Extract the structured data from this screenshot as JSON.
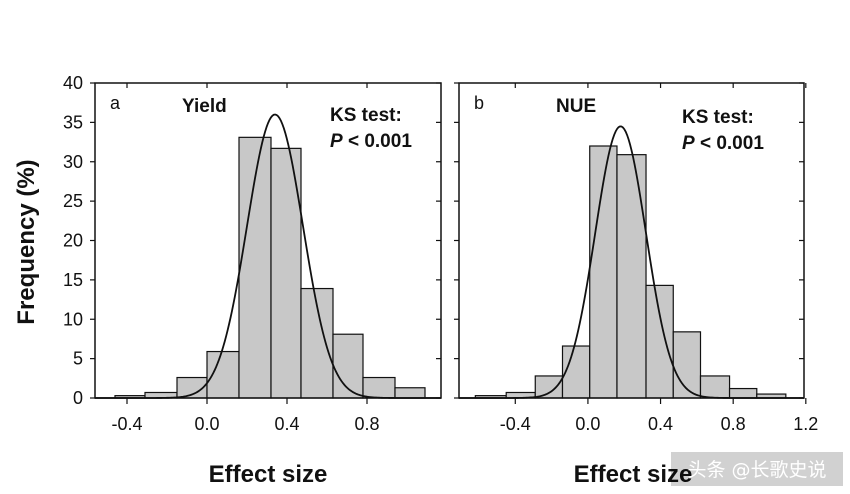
{
  "y_axis_label": "Frequency (%)",
  "watermark": "头条 @长歌史说",
  "chart_data": [
    {
      "type": "histogram",
      "panel_letter": "a",
      "title": "Yield",
      "annotation": {
        "line1": "KS test:",
        "line2_italic": "P",
        "line2_rest": " < 0.001"
      },
      "xlabel": "Effect size",
      "ylabel": "Frequency (%)",
      "xlim": [
        -0.56,
        1.17
      ],
      "ylim": [
        0,
        40
      ],
      "xticks": [
        -0.4,
        0.0,
        0.4,
        0.8
      ],
      "xtick_labels": [
        "-0.4",
        "0.0",
        "0.4",
        "0.8"
      ],
      "yticks": [
        0,
        5,
        10,
        15,
        20,
        25,
        30,
        35,
        40
      ],
      "bins": [
        {
          "x0": -0.46,
          "x1": -0.31,
          "value": 0.3
        },
        {
          "x0": -0.31,
          "x1": -0.15,
          "value": 0.7
        },
        {
          "x0": -0.15,
          "x1": 0.0,
          "value": 2.6
        },
        {
          "x0": 0.0,
          "x1": 0.16,
          "value": 5.9
        },
        {
          "x0": 0.16,
          "x1": 0.32,
          "value": 33.1
        },
        {
          "x0": 0.32,
          "x1": 0.47,
          "value": 31.7
        },
        {
          "x0": 0.47,
          "x1": 0.63,
          "value": 13.9
        },
        {
          "x0": 0.63,
          "x1": 0.78,
          "value": 8.1
        },
        {
          "x0": 0.78,
          "x1": 0.94,
          "value": 2.6
        },
        {
          "x0": 0.94,
          "x1": 1.09,
          "value": 1.3
        }
      ],
      "fit_curve": {
        "kind": "normal",
        "mean": 0.34,
        "sd": 0.14,
        "peak": 36.0
      }
    },
    {
      "type": "histogram",
      "panel_letter": "b",
      "title": "NUE",
      "annotation": {
        "line1": "KS test:",
        "line2_italic": "P",
        "line2_rest": " < 0.001"
      },
      "xlabel": "Effect size",
      "ylabel": "",
      "xlim": [
        -0.71,
        1.19
      ],
      "ylim": [
        0,
        40
      ],
      "xticks": [
        -0.4,
        0.0,
        0.4,
        0.8,
        1.2
      ],
      "xtick_labels": [
        "-0.4",
        "0.0",
        "0.4",
        "0.8",
        "1.2"
      ],
      "yticks": [
        0,
        5,
        10,
        15,
        20,
        25,
        30,
        35,
        40
      ],
      "bins": [
        {
          "x0": -0.62,
          "x1": -0.45,
          "value": 0.3
        },
        {
          "x0": -0.45,
          "x1": -0.29,
          "value": 0.7
        },
        {
          "x0": -0.29,
          "x1": -0.14,
          "value": 2.8
        },
        {
          "x0": -0.14,
          "x1": 0.01,
          "value": 6.6
        },
        {
          "x0": 0.01,
          "x1": 0.16,
          "value": 32.0
        },
        {
          "x0": 0.16,
          "x1": 0.32,
          "value": 30.9
        },
        {
          "x0": 0.32,
          "x1": 0.47,
          "value": 14.3
        },
        {
          "x0": 0.47,
          "x1": 0.62,
          "value": 8.4
        },
        {
          "x0": 0.62,
          "x1": 0.78,
          "value": 2.8
        },
        {
          "x0": 0.78,
          "x1": 0.93,
          "value": 1.2
        },
        {
          "x0": 0.93,
          "x1": 1.09,
          "value": 0.5
        }
      ],
      "fit_curve": {
        "kind": "normal",
        "mean": 0.18,
        "sd": 0.14,
        "peak": 34.5
      }
    }
  ]
}
